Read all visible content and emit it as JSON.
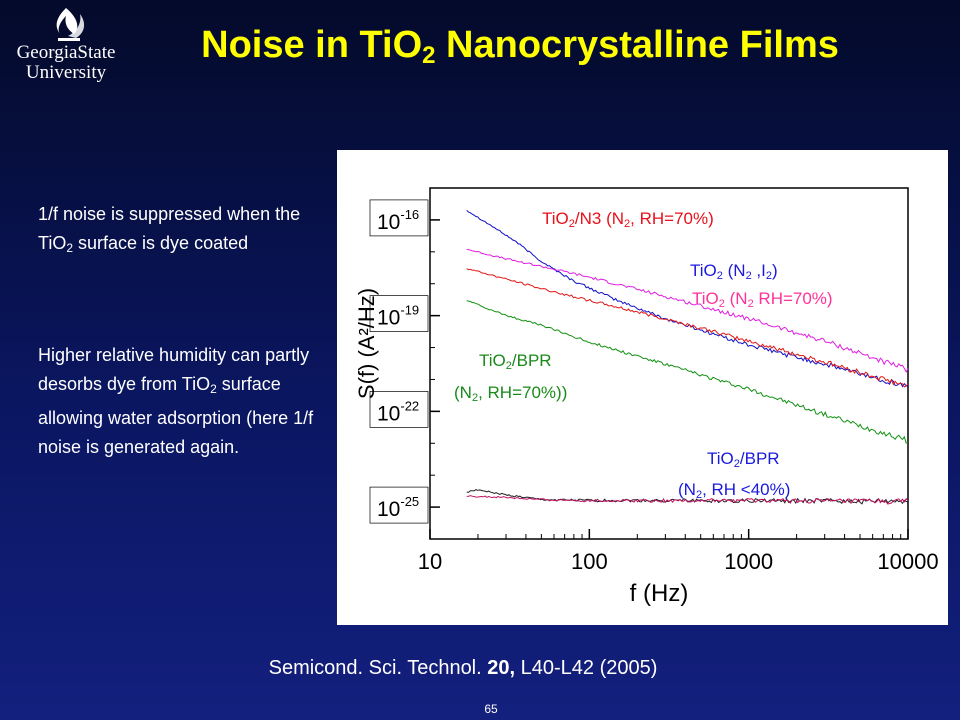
{
  "logo": {
    "name": "Georgia State University",
    "line1": "GeorgiaState",
    "line2": "University"
  },
  "title": {
    "prefix": "Noise in TiO",
    "sub": "2",
    "suffix": " Nanocrystalline Films"
  },
  "bullets": [
    {
      "parts": [
        "1/f noise is suppressed when the TiO",
        "2",
        " surface is dye coated"
      ]
    },
    {
      "parts": [
        "Higher relative humidity can partly desorbs dye from TiO",
        "2",
        " surface allowing water adsorption (here 1/f noise is generated again."
      ]
    }
  ],
  "citation": {
    "before": "Semicond. Sci. Technol. ",
    "bold": "20,",
    "after": " L40-L42 (2005)"
  },
  "page_number": "65",
  "chart_data": {
    "type": "line",
    "xlabel": "f (Hz)",
    "ylabel": "S(f) (A²/Hz)",
    "x_scale": "log",
    "y_scale": "log",
    "xlim": [
      10,
      10000
    ],
    "ylim": [
      1e-26,
      1e-15
    ],
    "x_ticks": [
      10,
      100,
      1000,
      10000
    ],
    "x_tick_labels": [
      "10",
      "100",
      "1000",
      "10000"
    ],
    "y_ticks": [
      1e-16,
      1e-19,
      1e-22,
      1e-25
    ],
    "y_tick_labels": [
      {
        "base": "10",
        "exp": "-16"
      },
      {
        "base": "10",
        "exp": "-19"
      },
      {
        "base": "10",
        "exp": "-22"
      },
      {
        "base": "10",
        "exp": "-25"
      }
    ],
    "grid": false,
    "annotations": [
      {
        "id": "n3",
        "color": "#e8101a",
        "parts": [
          "TiO",
          "2",
          "/N3 (N",
          "2",
          ", RH=70%)"
        ]
      },
      {
        "id": "n2i2",
        "color": "#1a1adc",
        "parts": [
          "TiO",
          "2",
          " (N",
          "2",
          " ,I",
          "2",
          ")"
        ]
      },
      {
        "id": "n2rh",
        "color": "#ff3399",
        "parts": [
          "TiO",
          "2",
          " (N",
          "2",
          " RH=70%)"
        ]
      },
      {
        "id": "bpr70a",
        "color": "#1a8a1a",
        "parts": [
          "TiO",
          "2",
          "/BPR"
        ]
      },
      {
        "id": "bpr70b",
        "color": "#1a8a1a",
        "parts": [
          "(N",
          "2",
          ", RH=70%))"
        ]
      },
      {
        "id": "bpr40a",
        "color": "#1a1adc",
        "parts": [
          "TiO",
          "2",
          "/BPR"
        ]
      },
      {
        "id": "bpr40b",
        "color": "#1a1adc",
        "parts": [
          "(N",
          "2",
          ", RH <40%)"
        ]
      }
    ],
    "series": [
      {
        "color": "#1010c8",
        "x": [
          17,
          25,
          35,
          50,
          80,
          150,
          300,
          1000,
          3000,
          10000
        ],
        "y": [
          2e-16,
          6e-17,
          2e-17,
          5e-18,
          1.2e-18,
          3e-19,
          8e-20,
          1.2e-20,
          3e-21,
          6e-22
        ]
      },
      {
        "color": "#e020e0",
        "x": [
          17,
          30,
          50,
          100,
          300,
          1000,
          3000,
          10000
        ],
        "y": [
          1.2e-17,
          6e-18,
          3.5e-18,
          1.6e-18,
          4e-19,
          8e-20,
          1.6e-20,
          2e-21
        ]
      },
      {
        "color": "#e01818",
        "x": [
          17,
          30,
          50,
          100,
          300,
          1000,
          3000,
          10000
        ],
        "y": [
          3e-18,
          1.4e-18,
          7e-19,
          3e-19,
          8e-20,
          1.6e-20,
          3.5e-21,
          6e-22
        ]
      },
      {
        "color": "#129212",
        "x": [
          17,
          30,
          50,
          100,
          300,
          1000,
          3000,
          10000
        ],
        "y": [
          3e-19,
          1e-19,
          5e-20,
          1.5e-20,
          3e-21,
          5e-22,
          8e-23,
          1.2e-23
        ]
      },
      {
        "color": "#202020",
        "x": [
          17,
          20,
          30,
          50,
          100,
          1000,
          10000
        ],
        "y": [
          3e-25,
          3.5e-25,
          2.4e-25,
          1.7e-25,
          1.6e-25,
          1.6e-25,
          1.5e-25
        ]
      },
      {
        "color": "#c01060",
        "x": [
          17,
          30,
          50,
          100,
          1000,
          10000
        ],
        "y": [
          2.2e-25,
          2e-25,
          1.7e-25,
          1.6e-25,
          1.6e-25,
          1.5e-25
        ]
      }
    ]
  }
}
